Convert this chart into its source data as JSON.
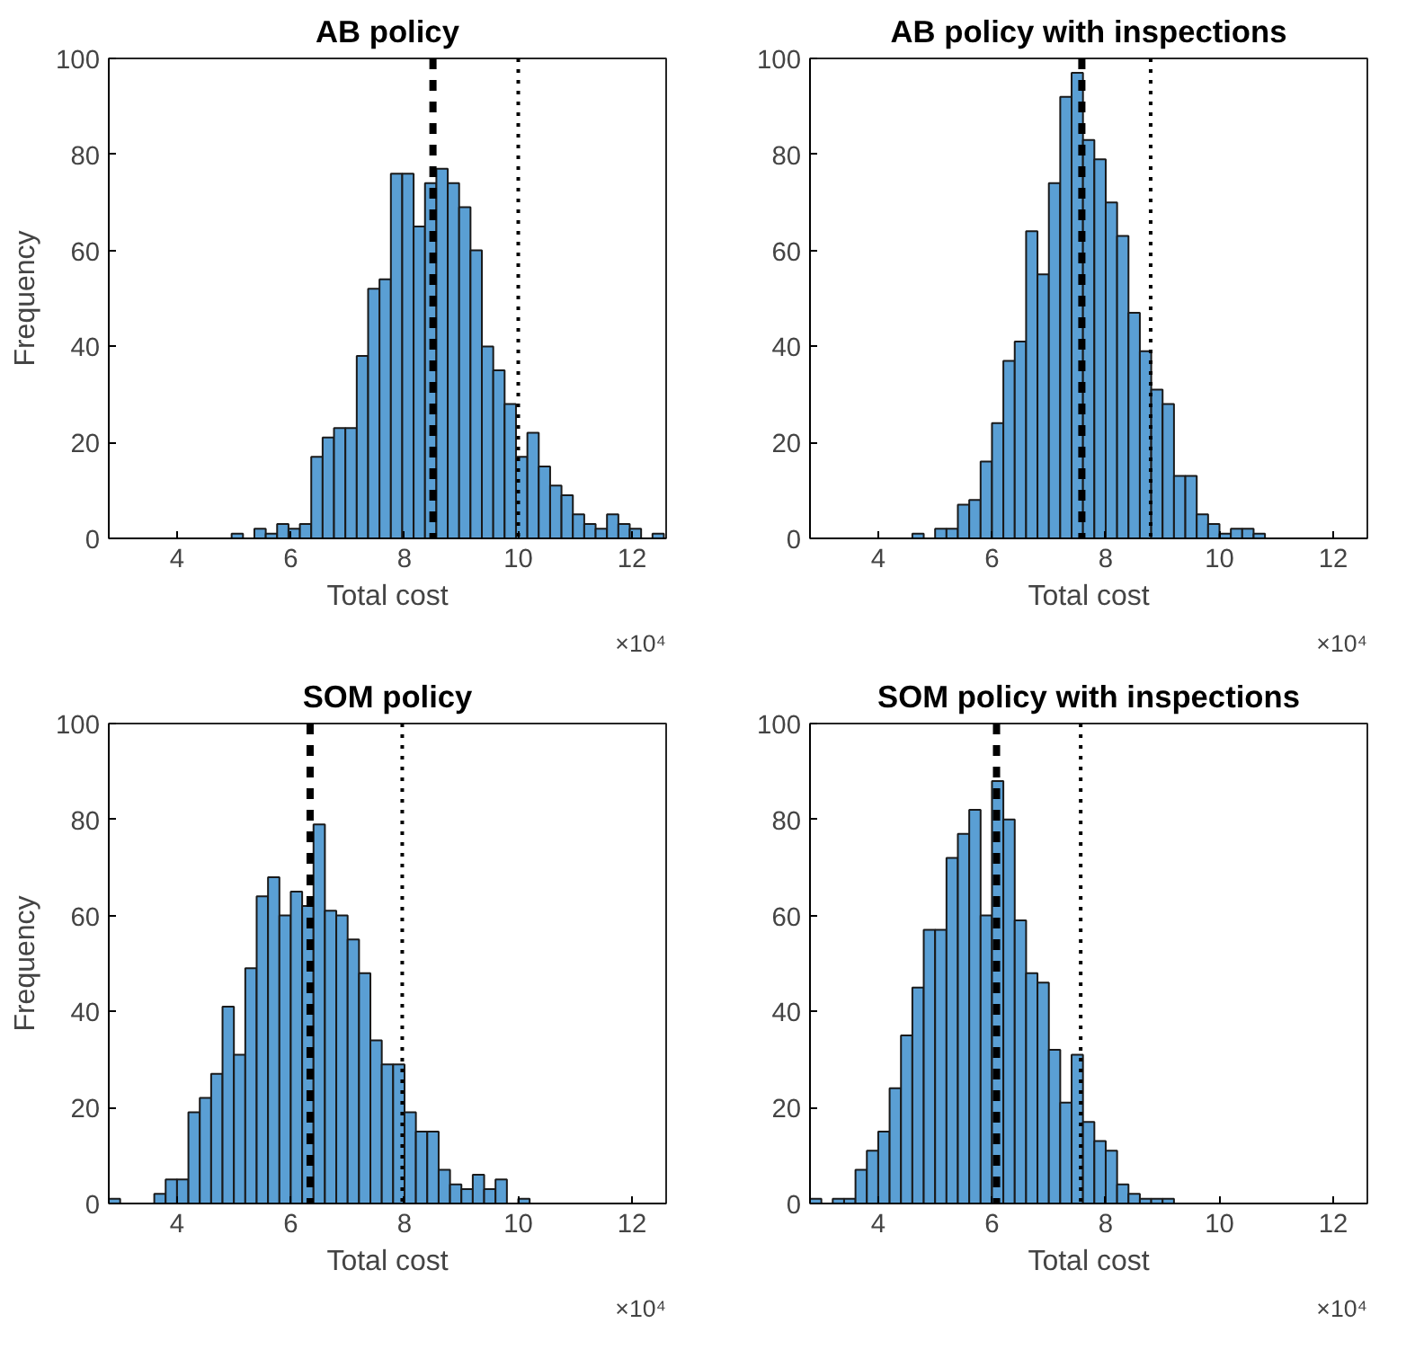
{
  "chart_data": [
    {
      "type": "histogram",
      "title": "AB policy",
      "xlabel": "Total cost",
      "ylabel": "Frequency",
      "annotations": [
        "×10⁴"
      ],
      "bins": [
        4.96,
        5.16,
        5.36,
        5.56,
        5.76,
        5.96,
        6.16,
        6.36,
        6.56,
        6.76,
        6.96,
        7.16,
        7.36,
        7.56,
        7.76,
        7.96,
        8.16,
        8.36,
        8.56,
        8.76,
        8.96,
        9.16,
        9.36,
        9.56,
        9.76,
        9.96,
        10.16,
        10.36,
        10.56,
        10.76,
        10.96,
        11.16,
        11.36,
        11.56,
        11.76,
        11.96,
        12.16,
        12.36,
        12.56
      ],
      "values": [
        1,
        0,
        2,
        1,
        3,
        2,
        3,
        17,
        21,
        23,
        23,
        38,
        52,
        54,
        76,
        76,
        65,
        74,
        77,
        74,
        69,
        60,
        40,
        35,
        28,
        17,
        22,
        15,
        11,
        9,
        5,
        3,
        2,
        5,
        3,
        2,
        0,
        1
      ],
      "color": "#5a9fd4",
      "xlim": [
        2.8,
        12.6
      ],
      "xticks": [
        4,
        6,
        8,
        10,
        12
      ],
      "ylim": [
        0,
        100
      ],
      "yticks": [
        0,
        20,
        40,
        60,
        80,
        100
      ],
      "ref_lines": [
        {
          "axis": "x",
          "value": 8.5,
          "color": "#000000",
          "line_style": "dashed"
        },
        {
          "axis": "x",
          "value": 10.0,
          "color": "#000000",
          "line_style": "dotted"
        }
      ]
    },
    {
      "type": "histogram",
      "title": "AB policy with inspections",
      "xlabel": "Total cost",
      "annotations": [
        "×10⁴"
      ],
      "bins": [
        4.6,
        4.8,
        5.0,
        5.2,
        5.4,
        5.6,
        5.8,
        6.0,
        6.2,
        6.4,
        6.6,
        6.8,
        7.0,
        7.2,
        7.4,
        7.6,
        7.8,
        8.0,
        8.2,
        8.4,
        8.6,
        8.8,
        9.0,
        9.2,
        9.4,
        9.6,
        9.8,
        10.0,
        10.2,
        10.4,
        10.6,
        10.8
      ],
      "values": [
        1,
        0,
        2,
        2,
        7,
        8,
        16,
        24,
        37,
        41,
        64,
        55,
        74,
        92,
        97,
        83,
        79,
        70,
        63,
        47,
        39,
        31,
        28,
        13,
        13,
        5,
        3,
        1,
        2,
        2,
        1
      ],
      "color": "#5a9fd4",
      "xlim": [
        2.8,
        12.6
      ],
      "xticks": [
        4,
        6,
        8,
        10,
        12
      ],
      "ylim": [
        0,
        100
      ],
      "yticks": [
        0,
        20,
        40,
        60,
        80,
        100
      ],
      "ref_lines": [
        {
          "axis": "x",
          "value": 7.58,
          "color": "#000000",
          "line_style": "dashed"
        },
        {
          "axis": "x",
          "value": 8.79,
          "color": "#000000",
          "line_style": "dotted"
        }
      ]
    },
    {
      "type": "histogram",
      "title": "SOM policy",
      "xlabel": "Total cost",
      "ylabel": "Frequency",
      "annotations": [
        "×10⁴"
      ],
      "bins": [
        2.8,
        3.0,
        3.2,
        3.4,
        3.6,
        3.8,
        4.0,
        4.2,
        4.4,
        4.6,
        4.8,
        5.0,
        5.2,
        5.4,
        5.6,
        5.8,
        6.0,
        6.2,
        6.4,
        6.6,
        6.8,
        7.0,
        7.2,
        7.4,
        7.6,
        7.8,
        8.0,
        8.2,
        8.4,
        8.6,
        8.8,
        9.0,
        9.2,
        9.4,
        9.6,
        9.8,
        10.0,
        10.2
      ],
      "values": [
        1,
        0,
        0,
        0,
        2,
        5,
        5,
        19,
        22,
        27,
        41,
        31,
        49,
        64,
        68,
        60,
        65,
        62,
        79,
        61,
        60,
        55,
        48,
        34,
        29,
        29,
        19,
        15,
        15,
        7,
        4,
        3,
        6,
        3,
        5,
        0,
        1
      ],
      "color": "#5a9fd4",
      "xlim": [
        2.8,
        12.6
      ],
      "xticks": [
        4,
        6,
        8,
        10,
        12
      ],
      "ylim": [
        0,
        100
      ],
      "yticks": [
        0,
        20,
        40,
        60,
        80,
        100
      ],
      "ref_lines": [
        {
          "axis": "x",
          "value": 6.34,
          "color": "#000000",
          "line_style": "dashed"
        },
        {
          "axis": "x",
          "value": 7.96,
          "color": "#000000",
          "line_style": "dotted"
        }
      ]
    },
    {
      "type": "histogram",
      "title": "SOM policy with inspections",
      "xlabel": "Total cost",
      "annotations": [
        "×10⁴"
      ],
      "bins": [
        2.8,
        3.0,
        3.2,
        3.4,
        3.6,
        3.8,
        4.0,
        4.2,
        4.4,
        4.6,
        4.8,
        5.0,
        5.2,
        5.4,
        5.6,
        5.8,
        6.0,
        6.2,
        6.4,
        6.6,
        6.8,
        7.0,
        7.2,
        7.4,
        7.6,
        7.8,
        8.0,
        8.2,
        8.4,
        8.6,
        8.8,
        9.0,
        9.2
      ],
      "values": [
        1,
        0,
        1,
        1,
        7,
        11,
        15,
        24,
        35,
        45,
        57,
        57,
        72,
        77,
        82,
        60,
        88,
        80,
        59,
        48,
        46,
        32,
        21,
        31,
        17,
        13,
        11,
        4,
        2,
        1,
        1,
        1
      ],
      "color": "#5a9fd4",
      "xlim": [
        2.8,
        12.6
      ],
      "xticks": [
        4,
        6,
        8,
        10,
        12
      ],
      "ylim": [
        0,
        100
      ],
      "yticks": [
        0,
        20,
        40,
        60,
        80,
        100
      ],
      "ref_lines": [
        {
          "axis": "x",
          "value": 6.08,
          "color": "#000000",
          "line_style": "dashed"
        },
        {
          "axis": "x",
          "value": 7.56,
          "color": "#000000",
          "line_style": "dotted"
        }
      ]
    }
  ]
}
